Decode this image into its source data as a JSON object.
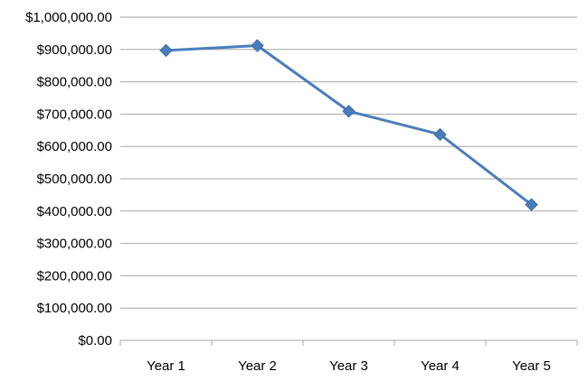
{
  "chart_data": {
    "type": "line",
    "categories": [
      "Year 1",
      "Year 2",
      "Year 3",
      "Year 4",
      "Year 5"
    ],
    "series": [
      {
        "values": [
          897000,
          912000,
          709000,
          637000,
          420000
        ],
        "color": "#4a7ebb",
        "marker": "diamond"
      }
    ],
    "ylim": [
      0,
      1000000
    ],
    "yticks": [
      0,
      100000,
      200000,
      300000,
      400000,
      500000,
      600000,
      700000,
      800000,
      900000,
      1000000
    ],
    "ytick_labels": [
      "$0.00",
      "$100,000.00",
      "$200,000.00",
      "$300,000.00",
      "$400,000.00",
      "$500,000.00",
      "$600,000.00",
      "$700,000.00",
      "$800,000.00",
      "$900,000.00",
      "$1,000,000.00"
    ],
    "grid": true,
    "legend": "none"
  }
}
